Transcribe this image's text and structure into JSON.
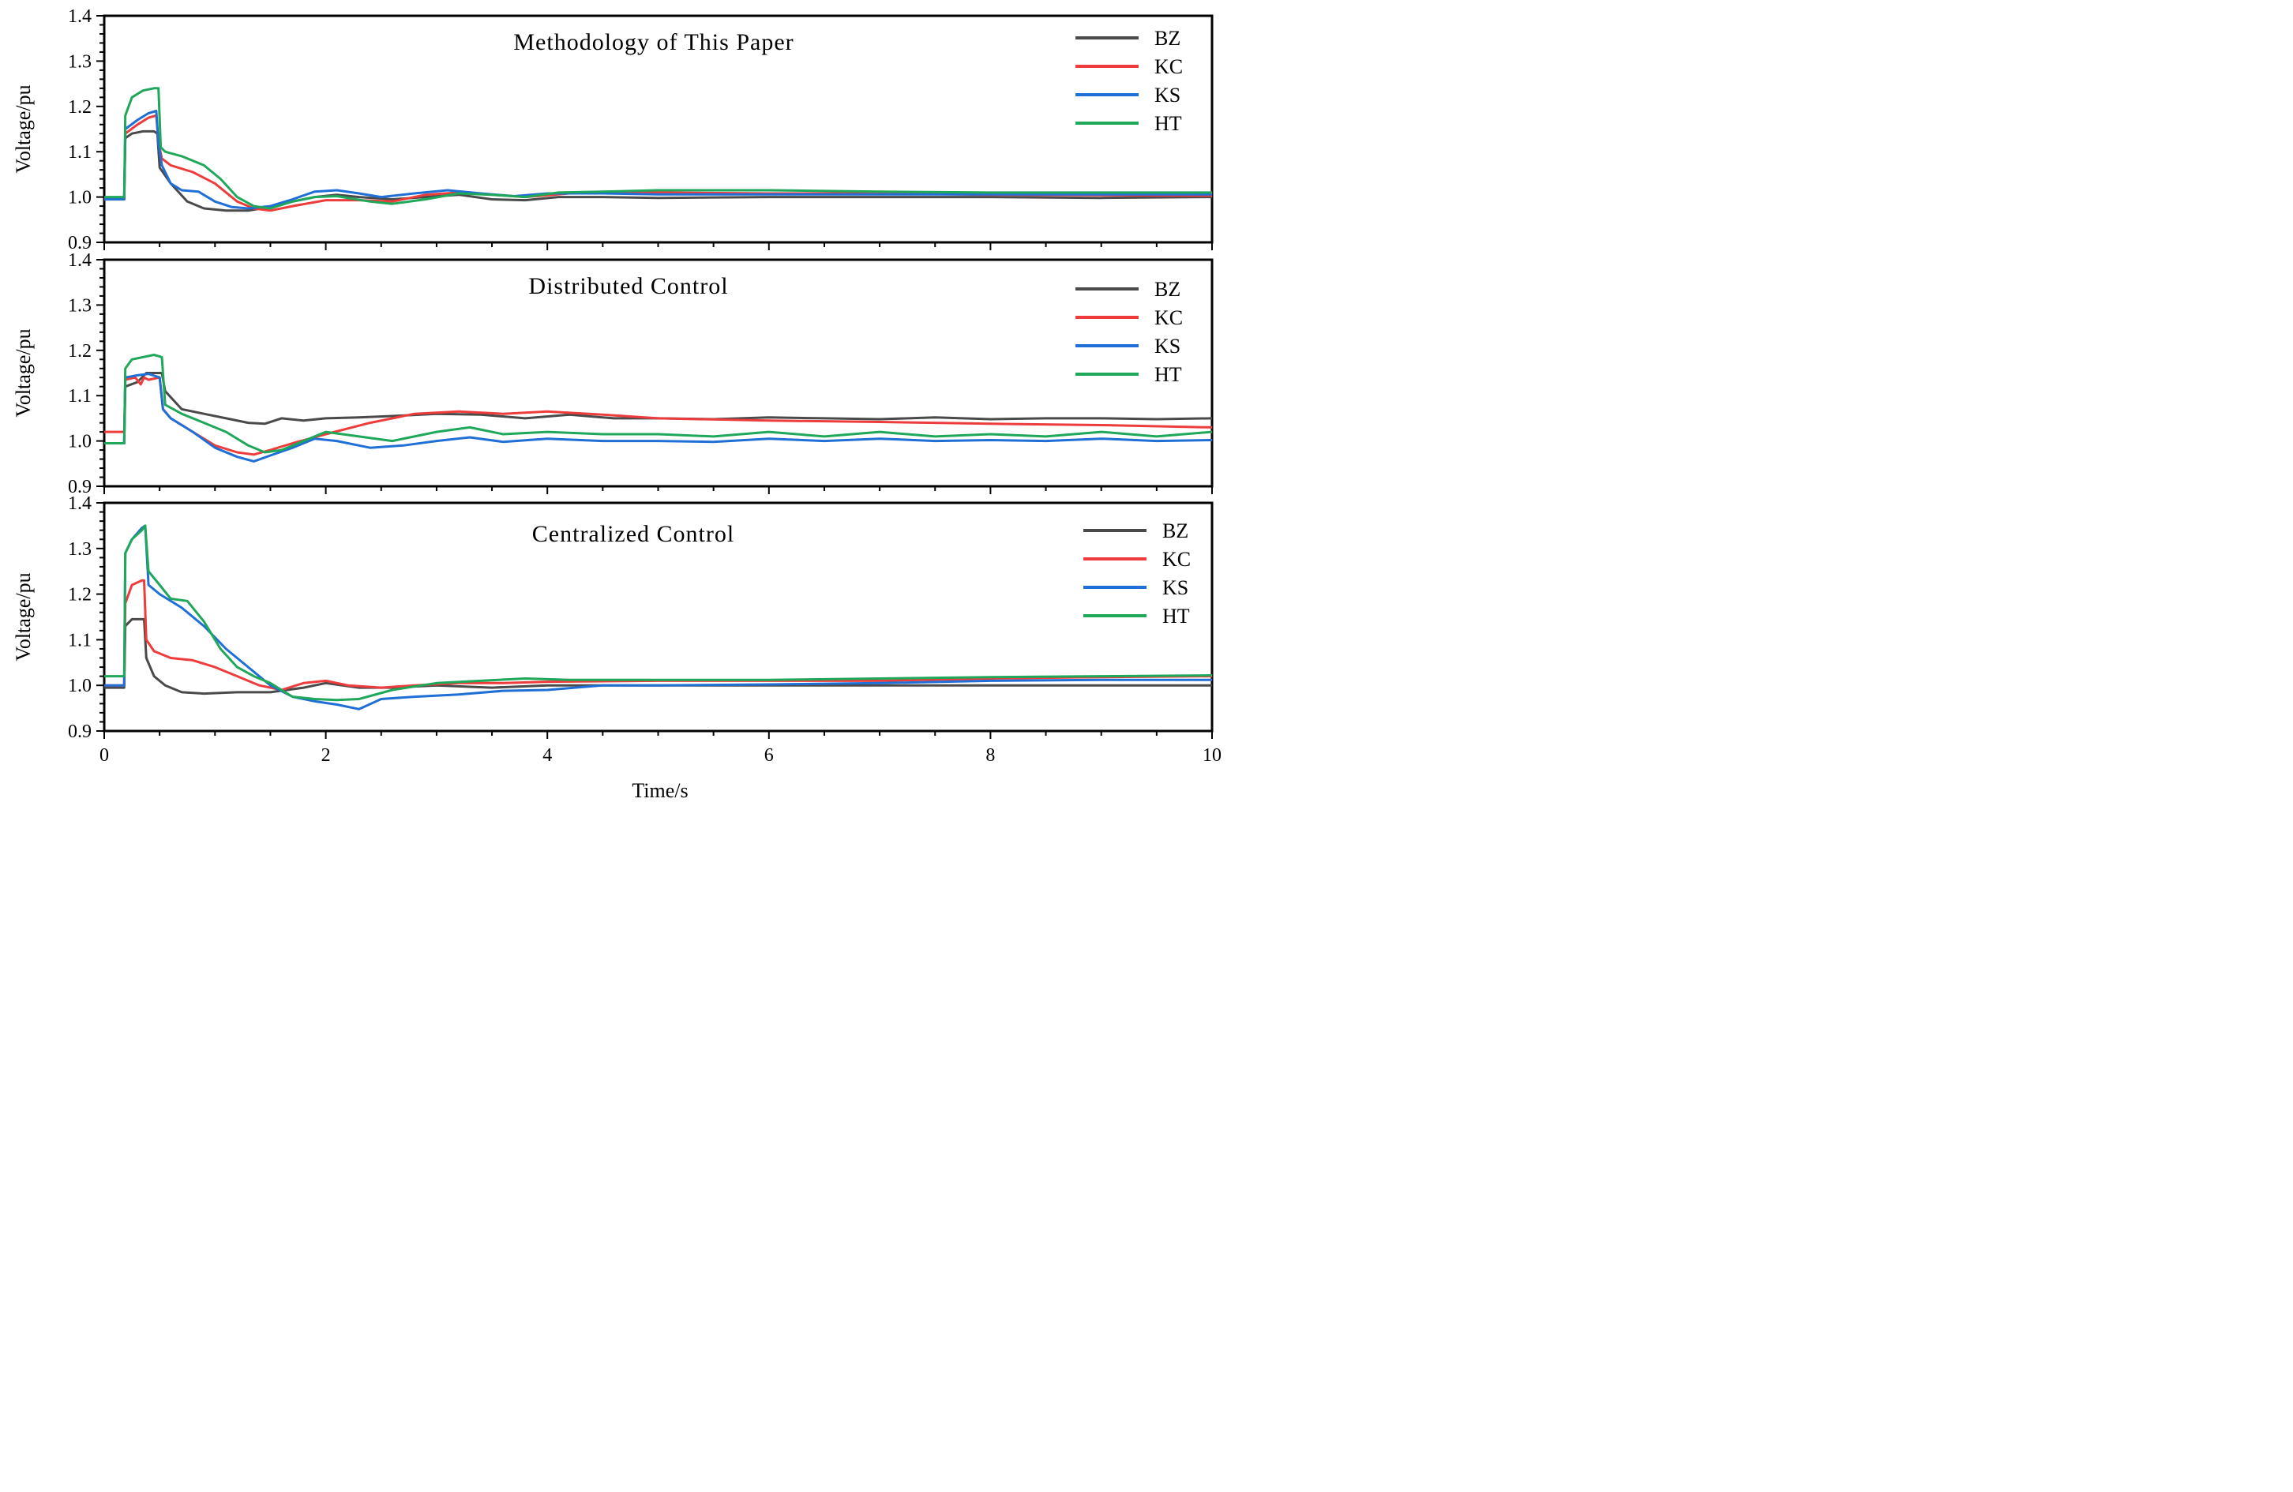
{
  "figure": {
    "xlabel": "Time/s"
  },
  "chart_data": [
    {
      "type": "line",
      "title": "Methodology of This Paper",
      "ylabel": "Voltage/pu",
      "xlim": [
        0,
        10
      ],
      "ylim": [
        0.9,
        1.4
      ],
      "x_ticks": [
        0,
        2,
        4,
        6,
        8,
        10
      ],
      "y_ticks": [
        0.9,
        1.0,
        1.1,
        1.2,
        1.3,
        1.4
      ],
      "y_tick_labels": [
        "0.9",
        "1.0",
        "1.1",
        "1.2",
        "1.3",
        "1.4"
      ],
      "legend_position": "top-right",
      "series": [
        {
          "name": "BZ",
          "color": "#4a4a4a",
          "x": [
            0,
            0.18,
            0.19,
            0.25,
            0.35,
            0.45,
            0.48,
            0.5,
            0.6,
            0.75,
            0.9,
            1.1,
            1.3,
            1.5,
            1.7,
            1.9,
            2.1,
            2.3,
            2.6,
            2.9,
            3.2,
            3.5,
            3.8,
            4.1,
            4.5,
            5.0,
            6.0,
            7.0,
            8.0,
            9.0,
            10
          ],
          "y": [
            0.995,
            0.995,
            1.13,
            1.14,
            1.145,
            1.145,
            1.14,
            1.065,
            1.03,
            0.99,
            0.975,
            0.97,
            0.97,
            0.978,
            0.99,
            1.0,
            1.005,
            1.0,
            0.995,
            1.0,
            1.005,
            0.995,
            0.993,
            1.0,
            1.0,
            0.998,
            1.0,
            1.0,
            1.0,
            0.998,
            1.0
          ]
        },
        {
          "name": "KC",
          "color": "#ee3c3c",
          "x": [
            0,
            0.18,
            0.19,
            0.3,
            0.4,
            0.47,
            0.49,
            0.52,
            0.6,
            0.8,
            1.0,
            1.2,
            1.35,
            1.5,
            1.7,
            2.0,
            2.3,
            2.6,
            2.9,
            3.2,
            3.5,
            3.8,
            4.2,
            5.0,
            6.0,
            7.0,
            8.0,
            9.0,
            10
          ],
          "y": [
            0.995,
            0.995,
            1.14,
            1.16,
            1.175,
            1.18,
            1.12,
            1.085,
            1.07,
            1.055,
            1.03,
            0.99,
            0.975,
            0.97,
            0.98,
            0.993,
            0.993,
            0.99,
            1.005,
            1.01,
            1.005,
            1.0,
            1.008,
            1.01,
            1.008,
            1.008,
            1.005,
            1.004,
            1.003
          ]
        },
        {
          "name": "KS",
          "color": "#1f6fd6",
          "x": [
            0,
            0.18,
            0.19,
            0.3,
            0.4,
            0.47,
            0.49,
            0.52,
            0.6,
            0.7,
            0.85,
            1.0,
            1.15,
            1.3,
            1.5,
            1.7,
            1.9,
            2.1,
            2.3,
            2.5,
            2.8,
            3.1,
            3.4,
            3.7,
            4.0,
            4.5,
            5.0,
            6.0,
            7.0,
            8.0,
            9.0,
            10
          ],
          "y": [
            0.995,
            0.995,
            1.15,
            1.17,
            1.185,
            1.19,
            1.12,
            1.07,
            1.03,
            1.015,
            1.012,
            0.99,
            0.978,
            0.975,
            0.98,
            0.995,
            1.012,
            1.015,
            1.008,
            1.0,
            1.008,
            1.015,
            1.008,
            1.002,
            1.008,
            1.008,
            1.006,
            1.006,
            1.006,
            1.006,
            1.006,
            1.006
          ]
        },
        {
          "name": "HT",
          "color": "#1fa85a",
          "x": [
            0,
            0.18,
            0.19,
            0.25,
            0.35,
            0.45,
            0.49,
            0.51,
            0.55,
            0.7,
            0.9,
            1.05,
            1.2,
            1.35,
            1.5,
            1.7,
            1.9,
            2.1,
            2.4,
            2.6,
            2.9,
            3.2,
            3.5,
            3.8,
            4.1,
            4.5,
            5.0,
            5.5,
            6.0,
            7.0,
            8.0,
            9.0,
            10
          ],
          "y": [
            1.0,
            1.0,
            1.18,
            1.22,
            1.235,
            1.24,
            1.24,
            1.11,
            1.1,
            1.09,
            1.07,
            1.04,
            1.0,
            0.98,
            0.975,
            0.99,
            1.0,
            1.002,
            0.99,
            0.985,
            0.995,
            1.008,
            1.005,
            1.0,
            1.01,
            1.012,
            1.015,
            1.015,
            1.015,
            1.012,
            1.01,
            1.01,
            1.01
          ]
        }
      ]
    },
    {
      "type": "line",
      "title": "Distributed Control",
      "ylabel": "Voltage/pu",
      "xlim": [
        0,
        10
      ],
      "ylim": [
        0.9,
        1.4
      ],
      "x_ticks": [
        0,
        2,
        4,
        6,
        8,
        10
      ],
      "y_ticks": [
        0.9,
        1.0,
        1.1,
        1.2,
        1.3,
        1.4
      ],
      "y_tick_labels": [
        "0.9",
        "1.0",
        "1.1",
        "1.2",
        "1.3",
        "1.4"
      ],
      "legend_position": "top-right",
      "series": [
        {
          "name": "BZ",
          "color": "#4a4a4a",
          "x": [
            0,
            0.18,
            0.19,
            0.3,
            0.38,
            0.45,
            0.52,
            0.55,
            0.7,
            0.9,
            1.1,
            1.3,
            1.45,
            1.6,
            1.8,
            2.0,
            2.3,
            2.6,
            3.0,
            3.4,
            3.8,
            4.2,
            4.6,
            5.0,
            5.5,
            6.0,
            6.5,
            7.0,
            7.5,
            8.0,
            8.5,
            9.0,
            9.5,
            10
          ],
          "y": [
            0.995,
            0.995,
            1.12,
            1.13,
            1.15,
            1.15,
            1.15,
            1.11,
            1.07,
            1.06,
            1.05,
            1.04,
            1.038,
            1.05,
            1.045,
            1.05,
            1.052,
            1.055,
            1.06,
            1.058,
            1.05,
            1.058,
            1.05,
            1.05,
            1.048,
            1.052,
            1.05,
            1.048,
            1.052,
            1.048,
            1.05,
            1.05,
            1.048,
            1.05
          ]
        },
        {
          "name": "KC",
          "color": "#ee3c3c",
          "x": [
            0,
            0.18,
            0.19,
            0.28,
            0.33,
            0.36,
            0.4,
            0.5,
            0.53,
            0.6,
            0.8,
            1.0,
            1.2,
            1.35,
            1.5,
            1.7,
            2.0,
            2.4,
            2.8,
            3.2,
            3.6,
            4.0,
            4.5,
            5.0,
            6.0,
            7.0,
            8.0,
            9.0,
            10
          ],
          "y": [
            1.02,
            1.02,
            1.135,
            1.14,
            1.125,
            1.14,
            1.135,
            1.14,
            1.07,
            1.05,
            1.02,
            0.99,
            0.975,
            0.97,
            0.98,
            0.995,
            1.015,
            1.04,
            1.06,
            1.065,
            1.06,
            1.065,
            1.058,
            1.05,
            1.045,
            1.042,
            1.038,
            1.035,
            1.03
          ]
        },
        {
          "name": "KS",
          "color": "#1f6fd6",
          "x": [
            0,
            0.18,
            0.19,
            0.3,
            0.4,
            0.5,
            0.53,
            0.6,
            0.8,
            1.0,
            1.2,
            1.35,
            1.5,
            1.7,
            1.9,
            2.1,
            2.4,
            2.7,
            3.0,
            3.3,
            3.6,
            4.0,
            4.5,
            5.0,
            5.5,
            6.0,
            6.5,
            7.0,
            7.5,
            8.0,
            8.5,
            9.0,
            9.5,
            10
          ],
          "y": [
            0.995,
            0.995,
            1.14,
            1.145,
            1.148,
            1.14,
            1.07,
            1.05,
            1.02,
            0.985,
            0.965,
            0.955,
            0.968,
            0.985,
            1.005,
            1.0,
            0.985,
            0.99,
            1.0,
            1.008,
            0.998,
            1.005,
            1.0,
            1.0,
            0.998,
            1.005,
            1.0,
            1.005,
            1.0,
            1.002,
            1.0,
            1.005,
            1.0,
            1.002
          ]
        },
        {
          "name": "HT",
          "color": "#1fa85a",
          "x": [
            0,
            0.18,
            0.19,
            0.25,
            0.35,
            0.45,
            0.52,
            0.55,
            0.7,
            0.9,
            1.1,
            1.3,
            1.45,
            1.6,
            1.8,
            2.0,
            2.3,
            2.6,
            3.0,
            3.3,
            3.6,
            4.0,
            4.5,
            5.0,
            5.5,
            6.0,
            6.5,
            7.0,
            7.5,
            8.0,
            8.5,
            9.0,
            9.5,
            10
          ],
          "y": [
            0.995,
            0.995,
            1.16,
            1.18,
            1.185,
            1.19,
            1.185,
            1.08,
            1.06,
            1.04,
            1.02,
            0.99,
            0.975,
            0.98,
            1.0,
            1.02,
            1.01,
            1.0,
            1.02,
            1.03,
            1.015,
            1.02,
            1.015,
            1.015,
            1.01,
            1.02,
            1.01,
            1.02,
            1.01,
            1.015,
            1.01,
            1.02,
            1.01,
            1.02
          ]
        }
      ]
    },
    {
      "type": "line",
      "title": "Centralized Control",
      "ylabel": "Voltage/pu",
      "xlim": [
        0,
        10
      ],
      "ylim": [
        0.9,
        1.4
      ],
      "x_ticks": [
        0,
        2,
        4,
        6,
        8,
        10
      ],
      "x_tick_labels": [
        "0",
        "2",
        "4",
        "6",
        "8",
        "10"
      ],
      "y_ticks": [
        0.9,
        1.0,
        1.1,
        1.2,
        1.3,
        1.4
      ],
      "y_tick_labels": [
        "0.9",
        "1.0",
        "1.1",
        "1.2",
        "1.3",
        "1.4"
      ],
      "legend_position": "top-right",
      "series": [
        {
          "name": "BZ",
          "color": "#4a4a4a",
          "x": [
            0,
            0.18,
            0.19,
            0.25,
            0.34,
            0.36,
            0.38,
            0.45,
            0.55,
            0.7,
            0.9,
            1.2,
            1.5,
            1.8,
            2.0,
            2.3,
            2.6,
            3.0,
            3.5,
            4.0,
            5.0,
            6.0,
            7.0,
            8.0,
            9.0,
            10
          ],
          "y": [
            0.995,
            0.995,
            1.13,
            1.145,
            1.145,
            1.145,
            1.06,
            1.02,
            1.0,
            0.985,
            0.982,
            0.985,
            0.985,
            0.995,
            1.005,
            0.995,
            0.995,
            1.0,
            0.995,
            1.0,
            1.0,
            1.0,
            1.0,
            1.0,
            1.0,
            1.0
          ]
        },
        {
          "name": "KC",
          "color": "#ee3c3c",
          "x": [
            0,
            0.18,
            0.19,
            0.25,
            0.34,
            0.36,
            0.38,
            0.45,
            0.6,
            0.8,
            1.0,
            1.2,
            1.4,
            1.6,
            1.8,
            2.0,
            2.2,
            2.5,
            2.8,
            3.2,
            3.6,
            4.0,
            5.0,
            6.0,
            7.0,
            8.0,
            9.0,
            10
          ],
          "y": [
            1.0,
            1.0,
            1.18,
            1.22,
            1.23,
            1.23,
            1.1,
            1.075,
            1.06,
            1.055,
            1.04,
            1.02,
            1.0,
            0.99,
            1.005,
            1.01,
            1.0,
            0.995,
            1.0,
            1.005,
            1.005,
            1.008,
            1.01,
            1.01,
            1.01,
            1.015,
            1.018,
            1.02
          ]
        },
        {
          "name": "KS",
          "color": "#1f6fd6",
          "x": [
            0,
            0.18,
            0.19,
            0.25,
            0.34,
            0.37,
            0.4,
            0.5,
            0.7,
            0.9,
            1.1,
            1.3,
            1.5,
            1.7,
            1.9,
            2.1,
            2.3,
            2.5,
            2.8,
            3.2,
            3.6,
            4.0,
            4.5,
            5.0,
            6.0,
            7.0,
            8.0,
            9.0,
            10
          ],
          "y": [
            1.0,
            1.0,
            1.29,
            1.32,
            1.345,
            1.35,
            1.22,
            1.2,
            1.17,
            1.13,
            1.08,
            1.04,
            1.0,
            0.975,
            0.965,
            0.958,
            0.948,
            0.97,
            0.975,
            0.98,
            0.988,
            0.99,
            1.0,
            1.0,
            1.002,
            1.005,
            1.01,
            1.012,
            1.012
          ]
        },
        {
          "name": "HT",
          "color": "#1fa85a",
          "x": [
            0,
            0.18,
            0.19,
            0.25,
            0.34,
            0.37,
            0.4,
            0.5,
            0.6,
            0.75,
            0.9,
            1.05,
            1.2,
            1.35,
            1.5,
            1.7,
            1.9,
            2.1,
            2.3,
            2.6,
            3.0,
            3.4,
            3.8,
            4.2,
            5.0,
            6.0,
            7.0,
            8.0,
            9.0,
            10
          ],
          "y": [
            1.02,
            1.02,
            1.29,
            1.32,
            1.34,
            1.35,
            1.25,
            1.22,
            1.19,
            1.185,
            1.14,
            1.08,
            1.04,
            1.02,
            1.005,
            0.975,
            0.97,
            0.968,
            0.97,
            0.99,
            1.005,
            1.01,
            1.015,
            1.012,
            1.012,
            1.012,
            1.015,
            1.018,
            1.02,
            1.022
          ]
        }
      ]
    }
  ]
}
